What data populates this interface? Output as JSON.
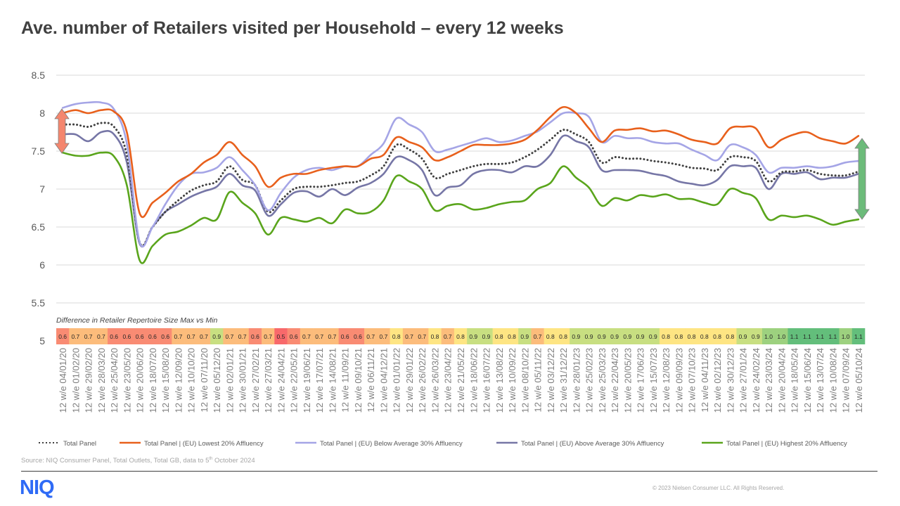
{
  "title": "Ave. number of Retailers visited per Household – every 12 weeks",
  "source": {
    "text": "Source: NIQ Consumer Panel, Total Outlets, Total GB, data to 5",
    "sup": "th",
    "tail": " October 2024"
  },
  "logo": "NIQ",
  "copyright": "© 2023 Nielsen Consumer LLC. All Rights Reserved.",
  "chart_data": {
    "type": "line",
    "title": "",
    "ylim": [
      5,
      8.5
    ],
    "yticks": [
      "5",
      "5.5",
      "6",
      "6.5",
      "7",
      "7.5",
      "8",
      "8.5"
    ],
    "grid": true,
    "legend_position": "bottom",
    "categories": [
      "12 w/e 04/01/20",
      "12 w/e 01/02/20",
      "12 w/e 29/02/20",
      "12 w/e 28/03/20",
      "12 w/e 25/04/20",
      "12 w/e 23/05/20",
      "12 w/e 20/06/20",
      "12 w/e 18/07/20",
      "12 w/e 15/08/20",
      "12 w/e 12/09/20",
      "12 w/e 10/10/20",
      "12 w/e 07/11/20",
      "12 w/e 05/12/20",
      "12 w/e 02/01/21",
      "12 w/e 30/01/21",
      "12 w/e 27/02/21",
      "12 w/e 27/03/21",
      "12 w/e 24/04/21",
      "12 w/e 22/05/21",
      "12 w/e 19/06/21",
      "12 w/e 17/07/21",
      "12 w/e 14/08/21",
      "12 w/e 11/09/21",
      "12 w/e 09/10/21",
      "12 w/e 06/11/21",
      "12 w/e 04/12/21",
      "12 w/e 01/01/22",
      "12 w/e 29/01/22",
      "12 w/e 26/02/22",
      "12 w/e 26/03/22",
      "12 w/e 23/04/22",
      "12 w/e 21/05/22",
      "12 w/e 18/06/22",
      "12 w/e 16/07/22",
      "12 w/e 13/08/22",
      "12 w/e 10/09/22",
      "12 w/e 08/10/22",
      "12 w/e 05/11/22",
      "12 w/e 03/12/22",
      "12 w/e 31/12/22",
      "12 w/e 28/01/23",
      "12 w/e 25/02/23",
      "12 w/e 25/03/23",
      "12 w/e 22/04/23",
      "12 w/e 20/05/23",
      "12 w/e 17/06/23",
      "12 w/e 15/07/23",
      "12 w/e 12/08/23",
      "12 w/e 09/09/23",
      "12 w/e 07/10/23",
      "12 w/e 04/11/23",
      "12 w/e 02/12/23",
      "12 w/e 30/12/23",
      "12 w/e 27/01/24",
      "12 w/e 24/02/24",
      "12 w/e 23/03/24",
      "12 w/e 20/04/24",
      "12 w/e 18/05/24",
      "12 w/e 15/06/24",
      "12 w/e 13/07/24",
      "12 w/e 10/08/24",
      "12 w/e 07/09/24",
      "12 w/e 05/10/24"
    ],
    "series": [
      {
        "name": "Total Panel",
        "color": "#404040",
        "dotted": true,
        "values": [
          7.85,
          7.85,
          7.82,
          7.87,
          7.82,
          7.45,
          6.3,
          6.5,
          6.7,
          6.85,
          6.98,
          7.05,
          7.1,
          7.3,
          7.12,
          7.05,
          6.7,
          6.85,
          7.0,
          7.03,
          7.03,
          7.05,
          7.08,
          7.1,
          7.18,
          7.3,
          7.58,
          7.52,
          7.4,
          7.15,
          7.2,
          7.25,
          7.3,
          7.33,
          7.33,
          7.35,
          7.42,
          7.52,
          7.65,
          7.78,
          7.72,
          7.62,
          7.35,
          7.42,
          7.4,
          7.4,
          7.37,
          7.35,
          7.32,
          7.28,
          7.27,
          7.25,
          7.42,
          7.42,
          7.37,
          7.1,
          7.22,
          7.23,
          7.25,
          7.2,
          7.18,
          7.18,
          7.23
        ]
      },
      {
        "name": "Total Panel | (EU) Lowest 20% Affluency",
        "color": "#e8601c",
        "values": [
          8.0,
          8.04,
          8.0,
          8.04,
          8.02,
          7.75,
          6.68,
          6.82,
          6.95,
          7.1,
          7.2,
          7.35,
          7.45,
          7.62,
          7.45,
          7.3,
          7.03,
          7.15,
          7.2,
          7.2,
          7.25,
          7.28,
          7.3,
          7.3,
          7.4,
          7.45,
          7.68,
          7.62,
          7.55,
          7.38,
          7.42,
          7.5,
          7.58,
          7.58,
          7.58,
          7.6,
          7.65,
          7.78,
          7.95,
          8.08,
          8.0,
          7.8,
          7.62,
          7.77,
          7.78,
          7.8,
          7.76,
          7.77,
          7.72,
          7.65,
          7.62,
          7.6,
          7.8,
          7.82,
          7.8,
          7.55,
          7.65,
          7.72,
          7.75,
          7.67,
          7.63,
          7.6,
          7.7
        ]
      },
      {
        "name": "Total Panel | (EU) Below Average 30% Affluency",
        "color": "#a5a5e6",
        "values": [
          8.07,
          8.12,
          8.14,
          8.14,
          8.05,
          7.6,
          6.3,
          6.5,
          6.8,
          7.05,
          7.2,
          7.22,
          7.28,
          7.42,
          7.25,
          7.05,
          6.72,
          6.95,
          7.15,
          7.25,
          7.28,
          7.25,
          7.3,
          7.3,
          7.45,
          7.6,
          7.93,
          7.85,
          7.75,
          7.5,
          7.52,
          7.57,
          7.62,
          7.67,
          7.62,
          7.64,
          7.7,
          7.76,
          7.88,
          8.0,
          8.0,
          7.95,
          7.62,
          7.7,
          7.67,
          7.67,
          7.62,
          7.6,
          7.6,
          7.52,
          7.45,
          7.38,
          7.58,
          7.55,
          7.45,
          7.22,
          7.28,
          7.28,
          7.3,
          7.28,
          7.3,
          7.35,
          7.37
        ]
      },
      {
        "name": "Total Panel | (EU) Above Average 30% Affluency",
        "color": "#7676a6",
        "values": [
          7.72,
          7.72,
          7.63,
          7.75,
          7.72,
          7.35,
          6.28,
          6.5,
          6.7,
          6.8,
          6.9,
          6.97,
          7.03,
          7.2,
          7.05,
          6.98,
          6.65,
          6.8,
          6.95,
          6.97,
          6.9,
          7.0,
          6.92,
          7.02,
          7.08,
          7.2,
          7.42,
          7.38,
          7.25,
          6.92,
          7.02,
          7.05,
          7.2,
          7.25,
          7.25,
          7.22,
          7.3,
          7.3,
          7.45,
          7.7,
          7.63,
          7.55,
          7.25,
          7.25,
          7.25,
          7.24,
          7.2,
          7.17,
          7.1,
          7.07,
          7.05,
          7.12,
          7.3,
          7.3,
          7.28,
          7.0,
          7.2,
          7.2,
          7.22,
          7.13,
          7.15,
          7.15,
          7.2
        ]
      },
      {
        "name": "Total Panel | (EU) Highest 20% Affluency",
        "color": "#5aa51c",
        "values": [
          7.48,
          7.44,
          7.44,
          7.48,
          7.43,
          7.05,
          6.06,
          6.25,
          6.4,
          6.44,
          6.52,
          6.62,
          6.6,
          6.96,
          6.82,
          6.68,
          6.4,
          6.62,
          6.6,
          6.57,
          6.62,
          6.55,
          6.73,
          6.68,
          6.7,
          6.85,
          7.17,
          7.1,
          7.0,
          6.72,
          6.78,
          6.8,
          6.73,
          6.75,
          6.8,
          6.83,
          6.85,
          7.0,
          7.08,
          7.3,
          7.15,
          7.02,
          6.78,
          6.88,
          6.85,
          6.92,
          6.9,
          6.93,
          6.87,
          6.87,
          6.82,
          6.8,
          7.0,
          6.95,
          6.88,
          6.6,
          6.65,
          6.63,
          6.65,
          6.6,
          6.53,
          6.57,
          6.6
        ]
      }
    ],
    "difference_row": {
      "label": "Difference in Retailer Repertoire Size Max vs Min",
      "values": [
        "0.6",
        "0.7",
        "0.7",
        "0.7",
        "0.6",
        "0.6",
        "0.6",
        "0.6",
        "0.6",
        "0.7",
        "0.7",
        "0.7",
        "0.9",
        "0.7",
        "0.7",
        "0.6",
        "0.7",
        "0.5",
        "0.6",
        "0.7",
        "0.7",
        "0.7",
        "0.6",
        "0.6",
        "0.7",
        "0.7",
        "0.8",
        "0.7",
        "0.7",
        "0.8",
        "0.7",
        "0.8",
        "0.9",
        "0.9",
        "0.8",
        "0.8",
        "0.9",
        "0.7",
        "0.8",
        "0.8",
        "0.9",
        "0.9",
        "0.9",
        "0.9",
        "0.9",
        "0.9",
        "0.9",
        "0.8",
        "0.8",
        "0.8",
        "0.8",
        "0.8",
        "0.8",
        "0.9",
        "0.9",
        "1.0",
        "1.0",
        "1.1",
        "1.1",
        "1.1",
        "1.1",
        "1.0",
        "1.1"
      ],
      "colors": {
        "0.5": "#f8696b",
        "0.6": "#f98b73",
        "0.7": "#fcbc7b",
        "0.8": "#fee583",
        "0.9": "#c8df81",
        "1.0": "#9dd17f",
        "1.1": "#63be7b"
      }
    },
    "annotations": [
      {
        "shape": "double-arrow",
        "color": "#f4866e",
        "at": "12 w/e 04/01/20"
      },
      {
        "shape": "double-arrow",
        "color": "#6cbb7a",
        "at": "12 w/e 05/10/24"
      }
    ]
  }
}
